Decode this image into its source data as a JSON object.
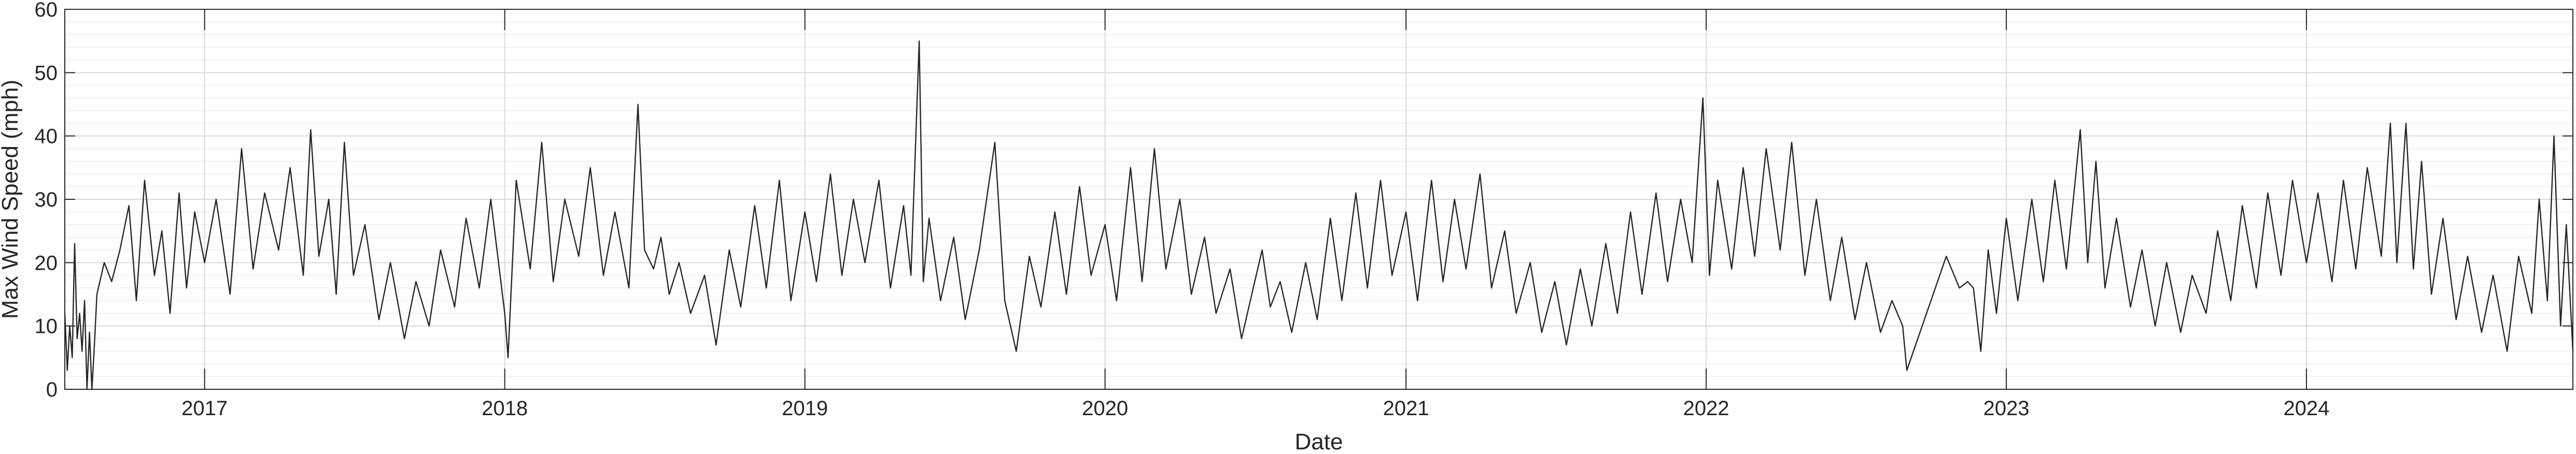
{
  "chart_data": {
    "type": "line",
    "title": "",
    "xlabel": "Date",
    "ylabel": "Max Wind Speed (mph)",
    "ylim": [
      0,
      60
    ],
    "xlim": [
      "2016-07-15",
      "2024-11-20"
    ],
    "y_ticks": [
      0,
      10,
      20,
      30,
      40,
      50,
      60
    ],
    "y_tick_labels": [
      "0",
      "10",
      "20",
      "30",
      "40",
      "50",
      "60"
    ],
    "x_ticks": [
      "2017-01-01",
      "2018-01-01",
      "2019-01-01",
      "2020-01-01",
      "2021-01-01",
      "2022-01-01",
      "2023-01-01",
      "2024-01-01"
    ],
    "x_tick_labels": [
      "2017",
      "2018",
      "2019",
      "2020",
      "2021",
      "2022",
      "2023",
      "2024"
    ],
    "grid": true,
    "minor_grid": true,
    "colors": {
      "line": "#262626",
      "grid_major": "#d9d9d9",
      "grid_minor": "#ececec",
      "axes": "#262626"
    },
    "series": [
      {
        "points": [
          [
            "2016-07-15",
            12
          ],
          [
            "2016-07-18",
            3
          ],
          [
            "2016-07-21",
            10
          ],
          [
            "2016-07-24",
            5
          ],
          [
            "2016-07-27",
            23
          ],
          [
            "2016-07-30",
            8
          ],
          [
            "2016-08-02",
            12
          ],
          [
            "2016-08-05",
            6
          ],
          [
            "2016-08-08",
            14
          ],
          [
            "2016-08-11",
            0
          ],
          [
            "2016-08-14",
            9
          ],
          [
            "2016-08-17",
            0
          ],
          [
            "2016-08-20",
            7
          ],
          [
            "2016-08-23",
            15
          ],
          [
            "2016-09-01",
            20
          ],
          [
            "2016-09-10",
            17
          ],
          [
            "2016-09-20",
            22
          ],
          [
            "2016-10-01",
            29
          ],
          [
            "2016-10-10",
            14
          ],
          [
            "2016-10-20",
            33
          ],
          [
            "2016-11-01",
            18
          ],
          [
            "2016-11-10",
            25
          ],
          [
            "2016-11-20",
            12
          ],
          [
            "2016-12-01",
            31
          ],
          [
            "2016-12-10",
            16
          ],
          [
            "2016-12-20",
            28
          ],
          [
            "2017-01-01",
            20
          ],
          [
            "2017-01-15",
            30
          ],
          [
            "2017-02-01",
            15
          ],
          [
            "2017-02-15",
            38
          ],
          [
            "2017-03-01",
            19
          ],
          [
            "2017-03-15",
            31
          ],
          [
            "2017-04-01",
            22
          ],
          [
            "2017-04-15",
            35
          ],
          [
            "2017-05-01",
            18
          ],
          [
            "2017-05-10",
            41
          ],
          [
            "2017-05-20",
            21
          ],
          [
            "2017-06-01",
            30
          ],
          [
            "2017-06-10",
            15
          ],
          [
            "2017-06-20",
            39
          ],
          [
            "2017-07-01",
            18
          ],
          [
            "2017-07-15",
            26
          ],
          [
            "2017-08-01",
            11
          ],
          [
            "2017-08-15",
            20
          ],
          [
            "2017-09-01",
            8
          ],
          [
            "2017-09-15",
            17
          ],
          [
            "2017-10-01",
            10
          ],
          [
            "2017-10-15",
            22
          ],
          [
            "2017-11-01",
            13
          ],
          [
            "2017-11-15",
            27
          ],
          [
            "2017-12-01",
            16
          ],
          [
            "2017-12-15",
            30
          ],
          [
            "2018-01-01",
            12
          ],
          [
            "2018-01-05",
            5
          ],
          [
            "2018-01-15",
            33
          ],
          [
            "2018-02-01",
            19
          ],
          [
            "2018-02-15",
            39
          ],
          [
            "2018-03-01",
            17
          ],
          [
            "2018-03-15",
            30
          ],
          [
            "2018-04-01",
            21
          ],
          [
            "2018-04-15",
            35
          ],
          [
            "2018-05-01",
            18
          ],
          [
            "2018-05-15",
            28
          ],
          [
            "2018-06-01",
            16
          ],
          [
            "2018-06-12",
            45
          ],
          [
            "2018-06-20",
            22
          ],
          [
            "2018-07-01",
            19
          ],
          [
            "2018-07-10",
            24
          ],
          [
            "2018-07-20",
            15
          ],
          [
            "2018-08-01",
            20
          ],
          [
            "2018-08-15",
            12
          ],
          [
            "2018-09-01",
            18
          ],
          [
            "2018-09-15",
            7
          ],
          [
            "2018-10-01",
            22
          ],
          [
            "2018-10-15",
            13
          ],
          [
            "2018-11-01",
            29
          ],
          [
            "2018-11-15",
            16
          ],
          [
            "2018-12-01",
            33
          ],
          [
            "2018-12-15",
            14
          ],
          [
            "2019-01-01",
            28
          ],
          [
            "2019-01-15",
            17
          ],
          [
            "2019-02-01",
            34
          ],
          [
            "2019-02-15",
            18
          ],
          [
            "2019-03-01",
            30
          ],
          [
            "2019-03-15",
            20
          ],
          [
            "2019-04-01",
            33
          ],
          [
            "2019-04-15",
            16
          ],
          [
            "2019-05-01",
            29
          ],
          [
            "2019-05-10",
            18
          ],
          [
            "2019-05-20",
            55
          ],
          [
            "2019-05-25",
            17
          ],
          [
            "2019-06-01",
            27
          ],
          [
            "2019-06-15",
            14
          ],
          [
            "2019-07-01",
            24
          ],
          [
            "2019-07-15",
            11
          ],
          [
            "2019-08-01",
            22
          ],
          [
            "2019-08-20",
            39
          ],
          [
            "2019-09-01",
            14
          ],
          [
            "2019-09-15",
            6
          ],
          [
            "2019-10-01",
            21
          ],
          [
            "2019-10-15",
            13
          ],
          [
            "2019-11-01",
            28
          ],
          [
            "2019-11-15",
            15
          ],
          [
            "2019-12-01",
            32
          ],
          [
            "2019-12-15",
            18
          ],
          [
            "2020-01-01",
            26
          ],
          [
            "2020-01-15",
            14
          ],
          [
            "2020-02-01",
            35
          ],
          [
            "2020-02-15",
            17
          ],
          [
            "2020-03-01",
            38
          ],
          [
            "2020-03-15",
            19
          ],
          [
            "2020-04-01",
            30
          ],
          [
            "2020-04-15",
            15
          ],
          [
            "2020-05-01",
            24
          ],
          [
            "2020-05-15",
            12
          ],
          [
            "2020-06-01",
            19
          ],
          [
            "2020-06-15",
            8
          ],
          [
            "2020-07-01",
            17
          ],
          [
            "2020-07-10",
            22
          ],
          [
            "2020-07-20",
            13
          ],
          [
            "2020-08-01",
            17
          ],
          [
            "2020-08-15",
            9
          ],
          [
            "2020-09-01",
            20
          ],
          [
            "2020-09-15",
            11
          ],
          [
            "2020-10-01",
            27
          ],
          [
            "2020-10-15",
            14
          ],
          [
            "2020-11-01",
            31
          ],
          [
            "2020-11-15",
            16
          ],
          [
            "2020-12-01",
            33
          ],
          [
            "2020-12-15",
            18
          ],
          [
            "2021-01-01",
            28
          ],
          [
            "2021-01-15",
            14
          ],
          [
            "2021-02-01",
            33
          ],
          [
            "2021-02-15",
            17
          ],
          [
            "2021-03-01",
            30
          ],
          [
            "2021-03-15",
            19
          ],
          [
            "2021-04-01",
            34
          ],
          [
            "2021-04-15",
            16
          ],
          [
            "2021-05-01",
            25
          ],
          [
            "2021-05-15",
            12
          ],
          [
            "2021-06-01",
            20
          ],
          [
            "2021-06-15",
            9
          ],
          [
            "2021-07-01",
            17
          ],
          [
            "2021-07-15",
            7
          ],
          [
            "2021-08-01",
            19
          ],
          [
            "2021-08-15",
            10
          ],
          [
            "2021-09-01",
            23
          ],
          [
            "2021-09-15",
            12
          ],
          [
            "2021-10-01",
            28
          ],
          [
            "2021-10-15",
            15
          ],
          [
            "2021-11-01",
            31
          ],
          [
            "2021-11-15",
            17
          ],
          [
            "2021-12-01",
            30
          ],
          [
            "2021-12-15",
            20
          ],
          [
            "2021-12-28",
            46
          ],
          [
            "2022-01-05",
            18
          ],
          [
            "2022-01-15",
            33
          ],
          [
            "2022-02-01",
            19
          ],
          [
            "2022-02-15",
            35
          ],
          [
            "2022-03-01",
            21
          ],
          [
            "2022-03-15",
            38
          ],
          [
            "2022-04-01",
            22
          ],
          [
            "2022-04-15",
            39
          ],
          [
            "2022-05-01",
            18
          ],
          [
            "2022-05-15",
            30
          ],
          [
            "2022-06-01",
            14
          ],
          [
            "2022-06-15",
            24
          ],
          [
            "2022-07-01",
            11
          ],
          [
            "2022-07-15",
            20
          ],
          [
            "2022-08-01",
            9
          ],
          [
            "2022-08-15",
            14
          ],
          [
            "2022-08-28",
            10
          ],
          [
            "2022-09-02",
            3
          ],
          [
            "2022-10-20",
            21
          ],
          [
            "2022-11-05",
            16
          ],
          [
            "2022-11-15",
            17
          ],
          [
            "2022-11-22",
            16
          ],
          [
            "2022-12-01",
            6
          ],
          [
            "2022-12-10",
            22
          ],
          [
            "2022-12-20",
            12
          ],
          [
            "2023-01-01",
            27
          ],
          [
            "2023-01-15",
            14
          ],
          [
            "2023-02-01",
            30
          ],
          [
            "2023-02-15",
            17
          ],
          [
            "2023-03-01",
            33
          ],
          [
            "2023-03-15",
            19
          ],
          [
            "2023-04-01",
            41
          ],
          [
            "2023-04-10",
            20
          ],
          [
            "2023-04-20",
            36
          ],
          [
            "2023-05-01",
            16
          ],
          [
            "2023-05-15",
            27
          ],
          [
            "2023-06-01",
            13
          ],
          [
            "2023-06-15",
            22
          ],
          [
            "2023-07-01",
            10
          ],
          [
            "2023-07-15",
            20
          ],
          [
            "2023-08-01",
            9
          ],
          [
            "2023-08-15",
            18
          ],
          [
            "2023-09-01",
            12
          ],
          [
            "2023-09-15",
            25
          ],
          [
            "2023-10-01",
            14
          ],
          [
            "2023-10-15",
            29
          ],
          [
            "2023-11-01",
            16
          ],
          [
            "2023-11-15",
            31
          ],
          [
            "2023-12-01",
            18
          ],
          [
            "2023-12-15",
            33
          ],
          [
            "2024-01-01",
            20
          ],
          [
            "2024-01-15",
            31
          ],
          [
            "2024-02-01",
            17
          ],
          [
            "2024-02-15",
            33
          ],
          [
            "2024-03-01",
            19
          ],
          [
            "2024-03-15",
            35
          ],
          [
            "2024-04-01",
            21
          ],
          [
            "2024-04-12",
            42
          ],
          [
            "2024-04-20",
            20
          ],
          [
            "2024-05-01",
            42
          ],
          [
            "2024-05-10",
            19
          ],
          [
            "2024-05-20",
            36
          ],
          [
            "2024-06-01",
            15
          ],
          [
            "2024-06-15",
            27
          ],
          [
            "2024-07-01",
            11
          ],
          [
            "2024-07-15",
            21
          ],
          [
            "2024-08-01",
            9
          ],
          [
            "2024-08-15",
            18
          ],
          [
            "2024-09-01",
            6
          ],
          [
            "2024-09-15",
            21
          ],
          [
            "2024-10-01",
            12
          ],
          [
            "2024-10-10",
            30
          ],
          [
            "2024-10-20",
            14
          ],
          [
            "2024-10-28",
            40
          ],
          [
            "2024-11-05",
            10
          ],
          [
            "2024-11-12",
            26
          ],
          [
            "2024-11-20",
            6
          ]
        ]
      }
    ]
  }
}
